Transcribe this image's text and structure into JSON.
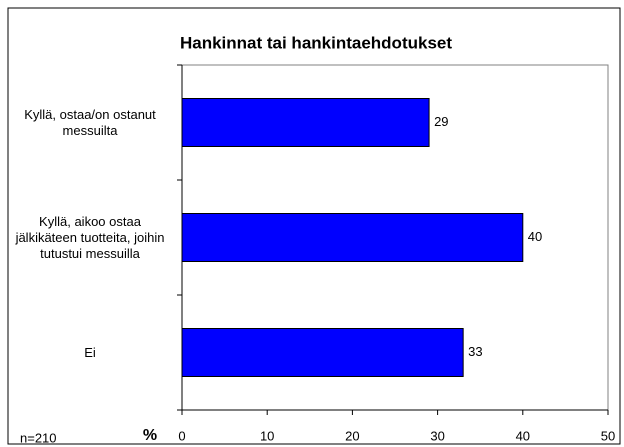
{
  "chart_data": {
    "type": "bar",
    "orientation": "horizontal",
    "title": "Hankinnat tai hankintaehdotukset",
    "categories": [
      "Kyllä, ostaa/on ostanut messuilta",
      "Kyllä, aikoo ostaa jälkikäteen tuotteita, joihin tutustui messuilla",
      "Ei"
    ],
    "values": [
      29,
      40,
      33
    ],
    "color": "#0000ff",
    "xlabel": "%",
    "note": "n=210",
    "xlim": [
      0,
      50
    ],
    "xticks": [
      0,
      10,
      20,
      30,
      40,
      50
    ]
  }
}
